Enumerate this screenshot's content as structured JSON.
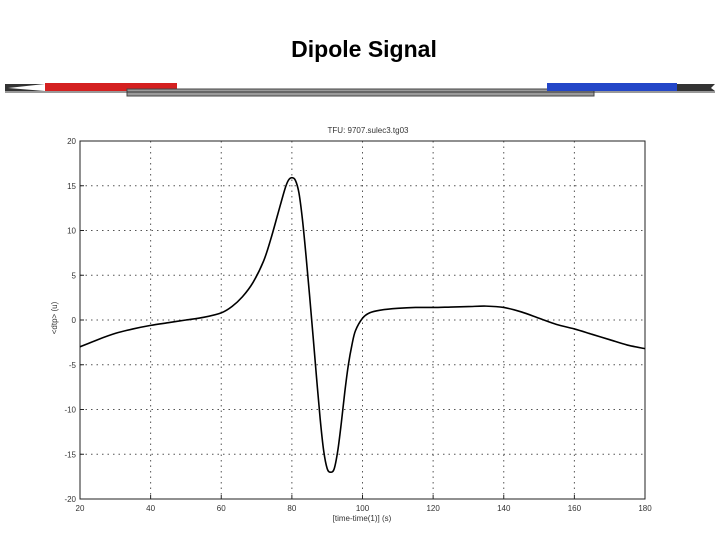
{
  "slide": {
    "title": "Dipole Signal"
  },
  "colors": {
    "red_bar": "#d42020",
    "blue_bar": "#2346c8",
    "gray_bar": "#9a9a9a",
    "line": "#000000",
    "grid": "#555555"
  },
  "chart_data": {
    "type": "line",
    "title": "TFU: 9707.sulec3.tg03",
    "xlabel": "[time-time(1)] (s)",
    "ylabel": "<dtp> (u)",
    "xlim": [
      20,
      180
    ],
    "ylim": [
      -20,
      20
    ],
    "xticks": [
      "20",
      "40",
      "60",
      "80",
      "100",
      "120",
      "140",
      "160",
      "180"
    ],
    "yticks": [
      "20",
      "15",
      "10",
      "5",
      "0",
      "-5",
      "-10",
      "-15",
      "-20"
    ],
    "grid": true,
    "series": [
      {
        "x": [
          20,
          25,
          30,
          35,
          40,
          45,
          50,
          55,
          60,
          63,
          66,
          69,
          72,
          74,
          76,
          78,
          79,
          80,
          81,
          82,
          83,
          84,
          85,
          86,
          87,
          88,
          89,
          90,
          91,
          92,
          93,
          94,
          95,
          96,
          97,
          98,
          100,
          102,
          105,
          110,
          115,
          120,
          125,
          130,
          135,
          140,
          145,
          150,
          155,
          160,
          165,
          170,
          175,
          180
        ],
        "y": [
          -3.0,
          -2.2,
          -1.5,
          -1.0,
          -0.6,
          -0.3,
          0.0,
          0.3,
          0.8,
          1.5,
          2.6,
          4.2,
          6.6,
          9.0,
          11.8,
          14.6,
          15.6,
          15.9,
          15.6,
          14.2,
          11.2,
          7.2,
          2.8,
          -1.8,
          -6.5,
          -11.0,
          -14.6,
          -16.6,
          -17.0,
          -16.6,
          -14.6,
          -11.5,
          -8.0,
          -5.0,
          -2.8,
          -1.2,
          0.2,
          0.8,
          1.1,
          1.3,
          1.4,
          1.4,
          1.45,
          1.5,
          1.55,
          1.4,
          0.9,
          0.2,
          -0.5,
          -1.0,
          -1.6,
          -2.2,
          -2.8,
          -3.2
        ]
      }
    ]
  }
}
